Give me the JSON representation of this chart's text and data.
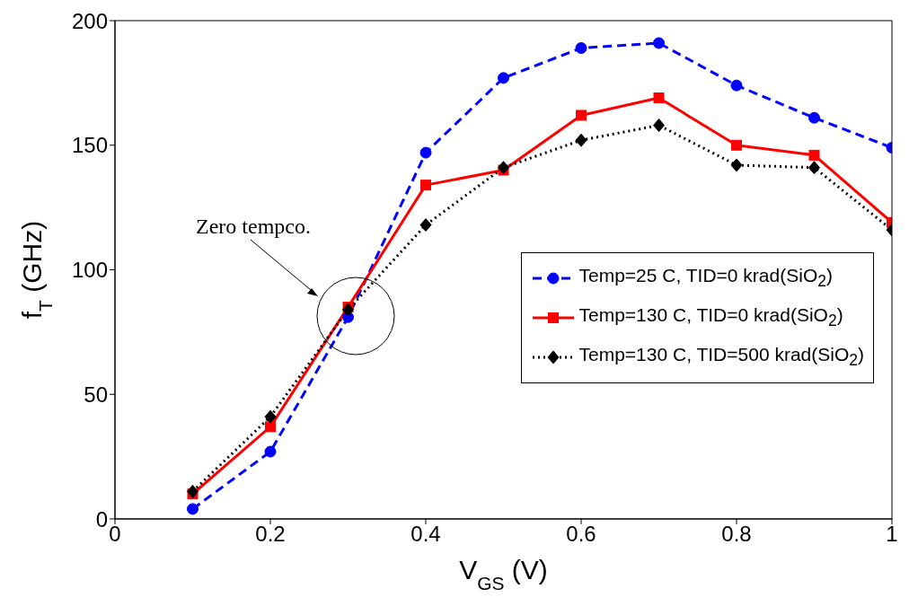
{
  "chart_data": {
    "type": "line",
    "xlabel": "V$_{GS}$ (V)",
    "ylabel": "f$_{T}$ (GHz)",
    "x": [
      0.1,
      0.2,
      0.3,
      0.4,
      0.5,
      0.6,
      0.7,
      0.8,
      0.9,
      1.0
    ],
    "series": [
      {
        "name": "Temp=25 C, TID=0 krad(SiO$_{2}$)",
        "color": "#0000ff",
        "marker": "circle",
        "line_style": "dashed",
        "values": [
          4,
          27,
          81,
          147,
          177,
          189,
          191,
          174,
          161,
          149
        ]
      },
      {
        "name": "Temp=130 C, TID=0 krad(SiO$_{2}$)",
        "color": "#ff0000",
        "marker": "square",
        "line_style": "solid",
        "values": [
          10,
          37,
          85,
          134,
          140,
          162,
          169,
          150,
          146,
          119
        ]
      },
      {
        "name": "Temp=130 C, TID=500 krad(SiO$_{2}$)",
        "color": "#000000",
        "marker": "diamond",
        "line_style": "dotted",
        "values": [
          11,
          41,
          84,
          118,
          141,
          152,
          158,
          142,
          141,
          116
        ]
      }
    ],
    "xlim": [
      0,
      1
    ],
    "xticks": [
      0,
      0.2,
      0.4,
      0.6,
      0.8,
      1
    ],
    "ylim": [
      0,
      200
    ],
    "yticks": [
      0,
      50,
      100,
      150,
      200
    ],
    "legend": "right",
    "annotations": [
      "Zero tempco."
    ]
  }
}
